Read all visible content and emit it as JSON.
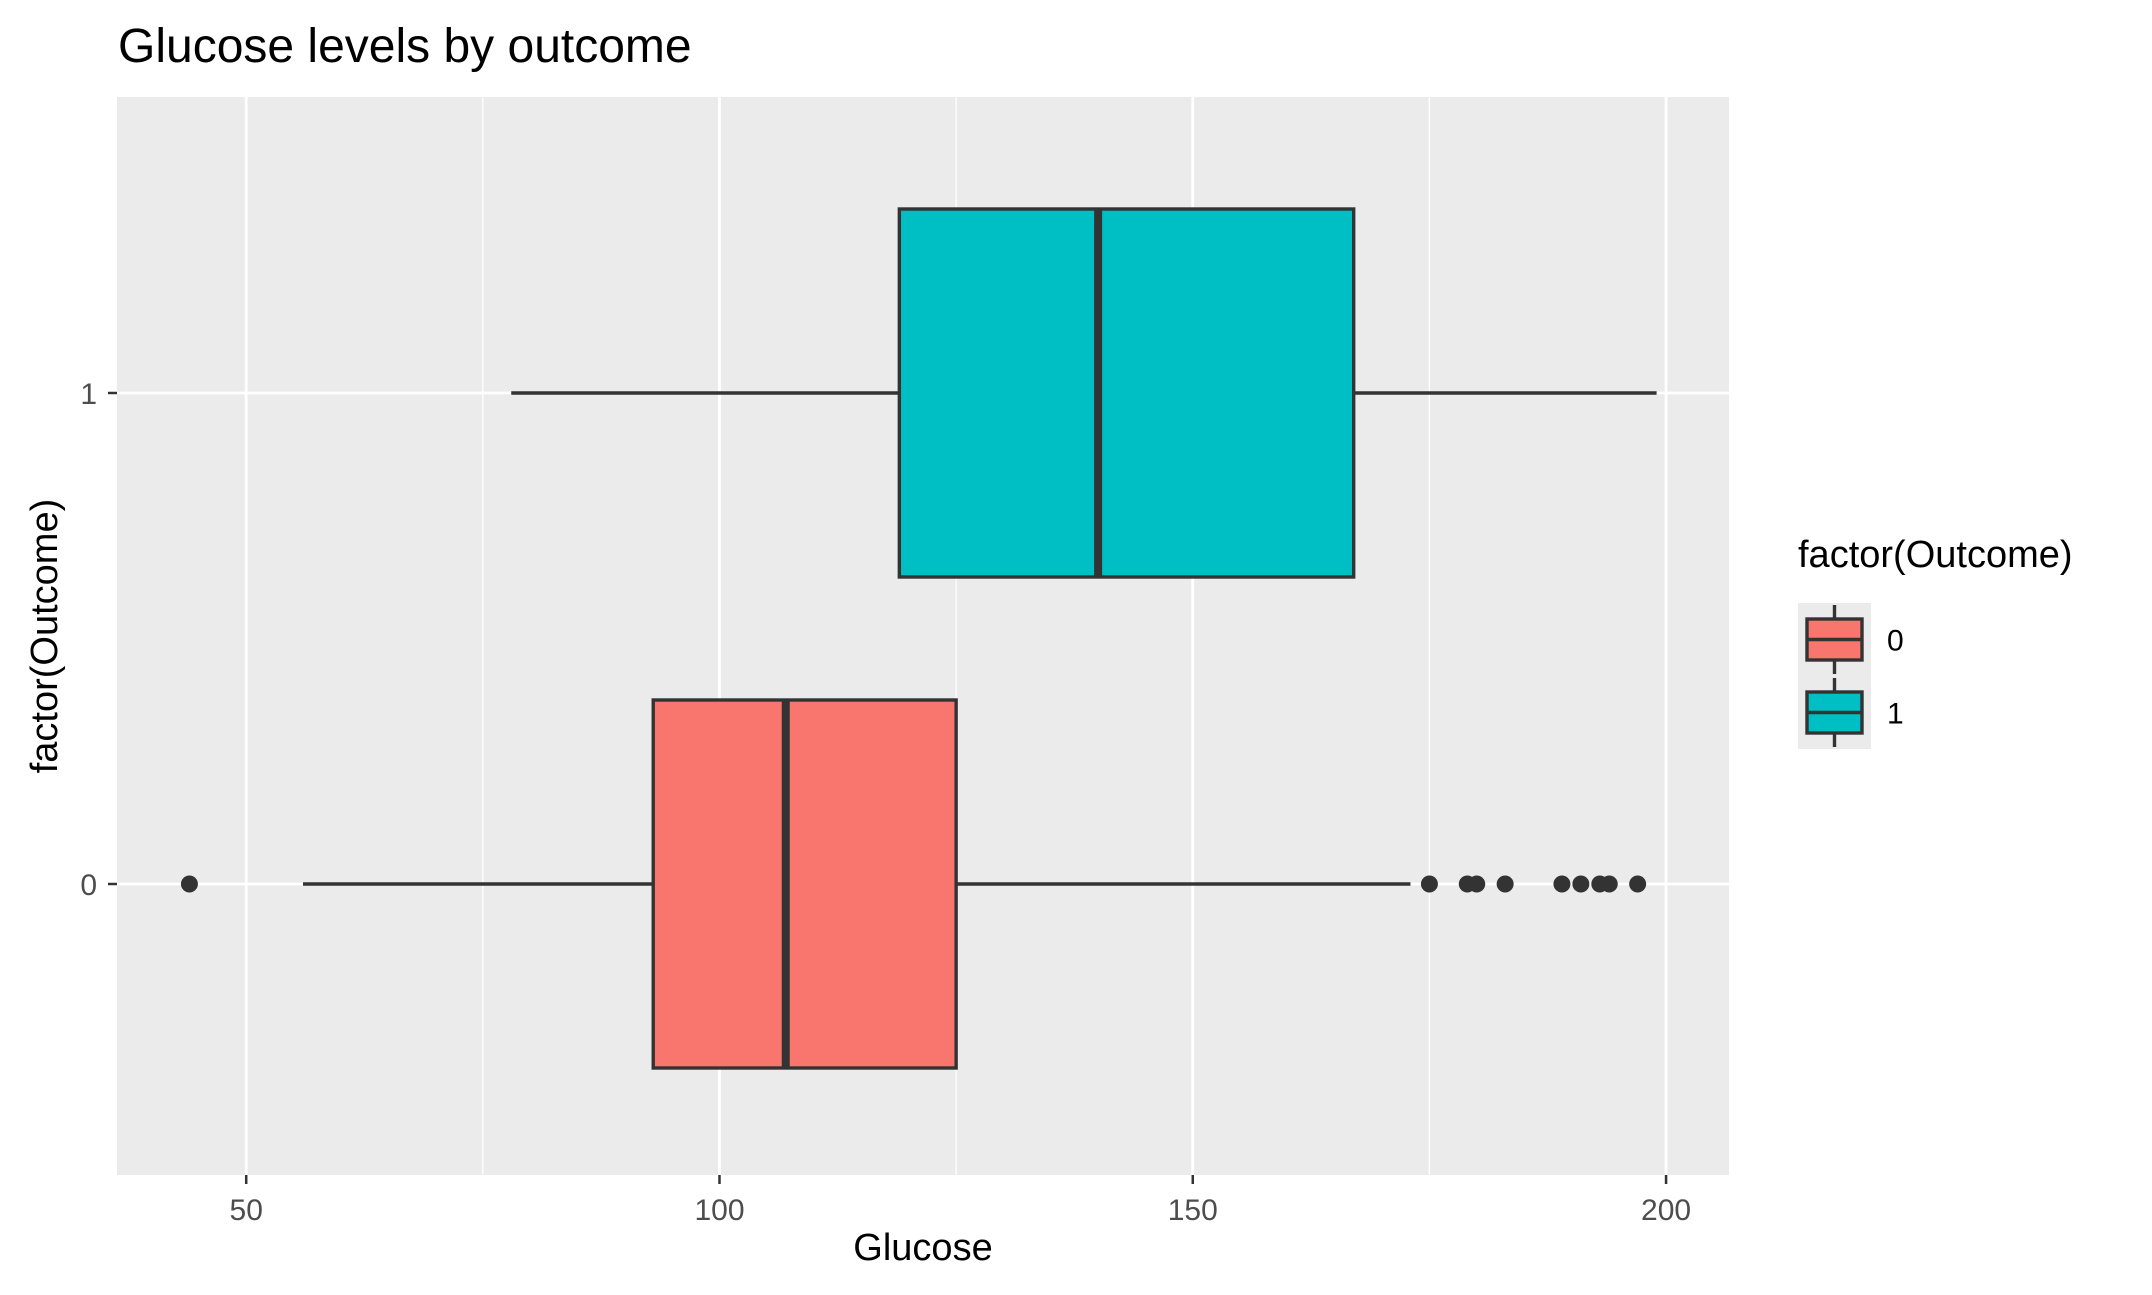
{
  "chart_data": {
    "type": "boxplot",
    "orientation": "horizontal",
    "title": "Glucose levels by outcome",
    "xlabel": "Glucose",
    "ylabel": "factor(Outcome)",
    "xlim": [
      36.35,
      206.65
    ],
    "x_ticks": [
      50,
      100,
      150,
      200
    ],
    "x_tick_labels": [
      "50",
      "100",
      "150",
      "200"
    ],
    "y_categories": [
      "0",
      "1"
    ],
    "grid": true,
    "legend": {
      "title": "factor(Outcome)",
      "position": "right",
      "entries": [
        {
          "label": "0",
          "color": "#F8766D"
        },
        {
          "label": "1",
          "color": "#00BFC4"
        }
      ]
    },
    "series": [
      {
        "category": "0",
        "color": "#F8766D",
        "whisker_low": 56,
        "q1": 93,
        "median": 107,
        "q3": 125,
        "whisker_high": 173,
        "outliers": [
          44,
          175,
          179,
          180,
          183,
          189,
          191,
          193,
          194,
          197
        ]
      },
      {
        "category": "1",
        "color": "#00BFC4",
        "whisker_low": 78,
        "q1": 119,
        "median": 140,
        "q3": 167,
        "whisker_high": 199,
        "outliers": []
      }
    ]
  },
  "colors": {
    "panel_background": "#EBEBEB",
    "grid_line": "#FFFFFF",
    "box_outline": "#333333",
    "tick_label": "#4D4D4D"
  }
}
